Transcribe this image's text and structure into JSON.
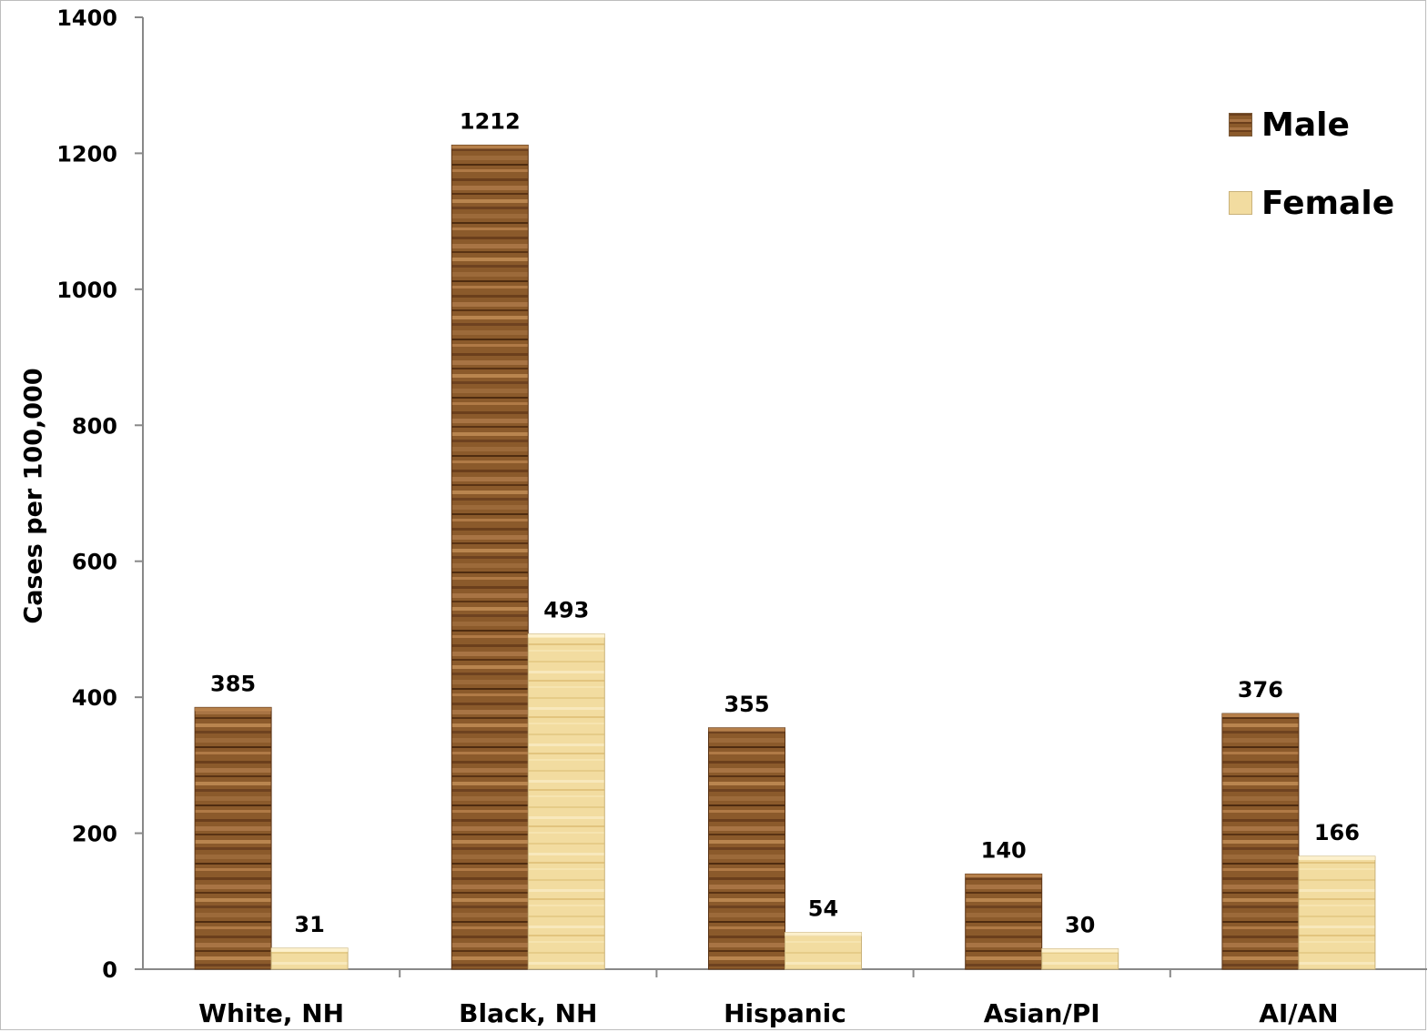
{
  "chart_data": {
    "type": "bar",
    "title": "",
    "xlabel": "",
    "ylabel": "Cases per 100,000",
    "ylim": [
      0,
      1400
    ],
    "yticks": [
      0,
      200,
      400,
      600,
      800,
      1000,
      1200,
      1400
    ],
    "categories": [
      "White, NH",
      "Black, NH",
      "Hispanic",
      "Asian/PI",
      "AI/AN"
    ],
    "series": [
      {
        "name": "Male",
        "values": [
          385,
          1212,
          355,
          140,
          376
        ],
        "color": "#8b5a2b"
      },
      {
        "name": "Female",
        "values": [
          31,
          493,
          54,
          30,
          166
        ],
        "color": "#f2dca0"
      }
    ],
    "legend_position": "top-right",
    "grid": false
  }
}
